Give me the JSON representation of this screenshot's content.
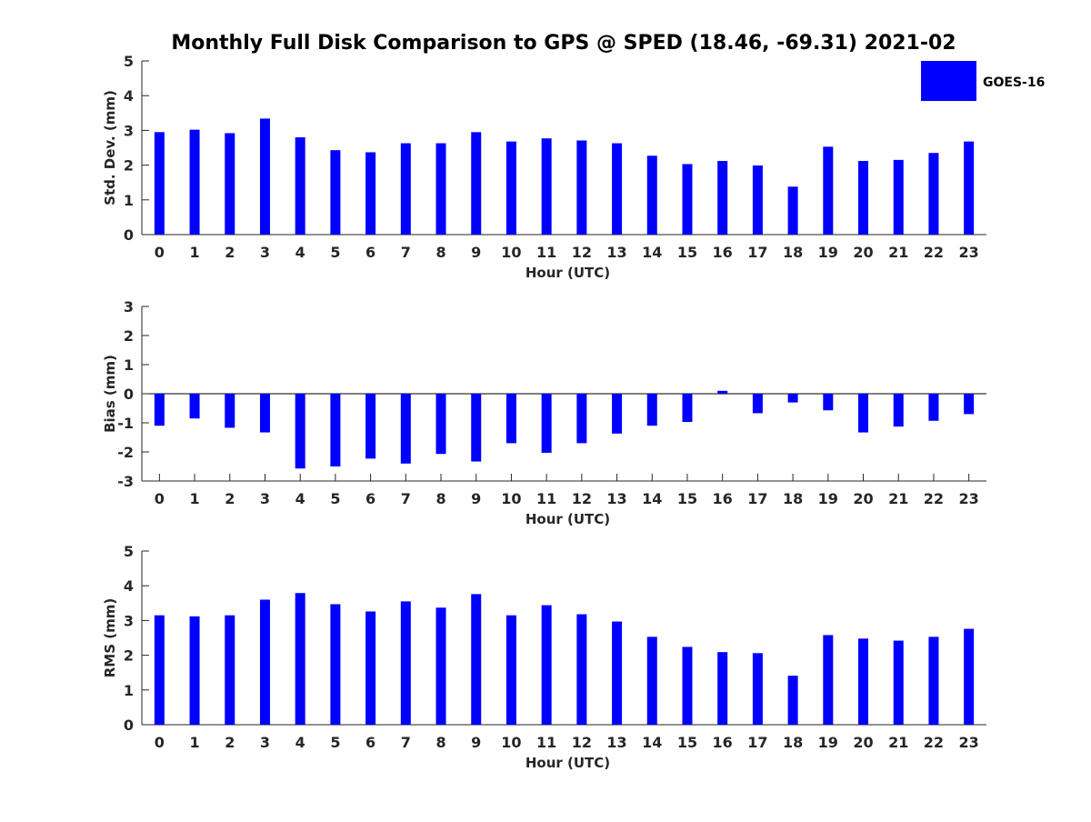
{
  "title": "Monthly Full Disk Comparison to GPS @ SPED (18.46, -69.31) 2021-02",
  "colors": {
    "bar": "#0000ff",
    "axis": "#262626",
    "background": "#ffffff"
  },
  "legend": {
    "label": "GOES-16",
    "placement": "top-right"
  },
  "chart_data": [
    {
      "type": "bar",
      "categories": [
        "0",
        "1",
        "2",
        "3",
        "4",
        "5",
        "6",
        "7",
        "8",
        "9",
        "10",
        "11",
        "12",
        "13",
        "14",
        "15",
        "16",
        "17",
        "18",
        "19",
        "20",
        "21",
        "22",
        "23"
      ],
      "series": [
        {
          "name": "GOES-16",
          "values": [
            2.95,
            3.02,
            2.92,
            3.34,
            2.8,
            2.43,
            2.37,
            2.63,
            2.63,
            2.95,
            2.68,
            2.77,
            2.71,
            2.63,
            2.27,
            2.03,
            2.12,
            1.99,
            1.38,
            2.53,
            2.12,
            2.15,
            2.35,
            2.68
          ]
        }
      ],
      "xlabel": "Hour (UTC)",
      "ylabel": "Std. Dev. (mm)",
      "ylim": [
        0,
        5
      ],
      "yticks": [
        0,
        1,
        2,
        3,
        4,
        5
      ],
      "grid": false
    },
    {
      "type": "bar",
      "categories": [
        "0",
        "1",
        "2",
        "3",
        "4",
        "5",
        "6",
        "7",
        "8",
        "9",
        "10",
        "11",
        "12",
        "13",
        "14",
        "15",
        "16",
        "17",
        "18",
        "19",
        "20",
        "21",
        "22",
        "23"
      ],
      "series": [
        {
          "name": "GOES-16",
          "values": [
            -1.1,
            -0.85,
            -1.17,
            -1.33,
            -2.57,
            -2.5,
            -2.23,
            -2.4,
            -2.07,
            -2.33,
            -1.7,
            -2.03,
            -1.7,
            -1.37,
            -1.1,
            -0.97,
            0.1,
            -0.67,
            -0.3,
            -0.57,
            -1.33,
            -1.13,
            -0.93,
            -0.7
          ]
        }
      ],
      "xlabel": "Hour (UTC)",
      "ylabel": "Bias (mm)",
      "ylim": [
        -3,
        3
      ],
      "yticks": [
        -3,
        -2,
        -1,
        0,
        1,
        2,
        3
      ],
      "grid": false
    },
    {
      "type": "bar",
      "categories": [
        "0",
        "1",
        "2",
        "3",
        "4",
        "5",
        "6",
        "7",
        "8",
        "9",
        "10",
        "11",
        "12",
        "13",
        "14",
        "15",
        "16",
        "17",
        "18",
        "19",
        "20",
        "21",
        "22",
        "23"
      ],
      "series": [
        {
          "name": "GOES-16",
          "values": [
            3.15,
            3.12,
            3.15,
            3.6,
            3.79,
            3.47,
            3.26,
            3.55,
            3.37,
            3.76,
            3.15,
            3.44,
            3.18,
            2.97,
            2.53,
            2.24,
            2.09,
            2.06,
            1.41,
            2.58,
            2.48,
            2.42,
            2.53,
            2.76
          ]
        }
      ],
      "xlabel": "Hour (UTC)",
      "ylabel": "RMS (mm)",
      "ylim": [
        0,
        5
      ],
      "yticks": [
        0,
        1,
        2,
        3,
        4,
        5
      ],
      "grid": false
    }
  ]
}
